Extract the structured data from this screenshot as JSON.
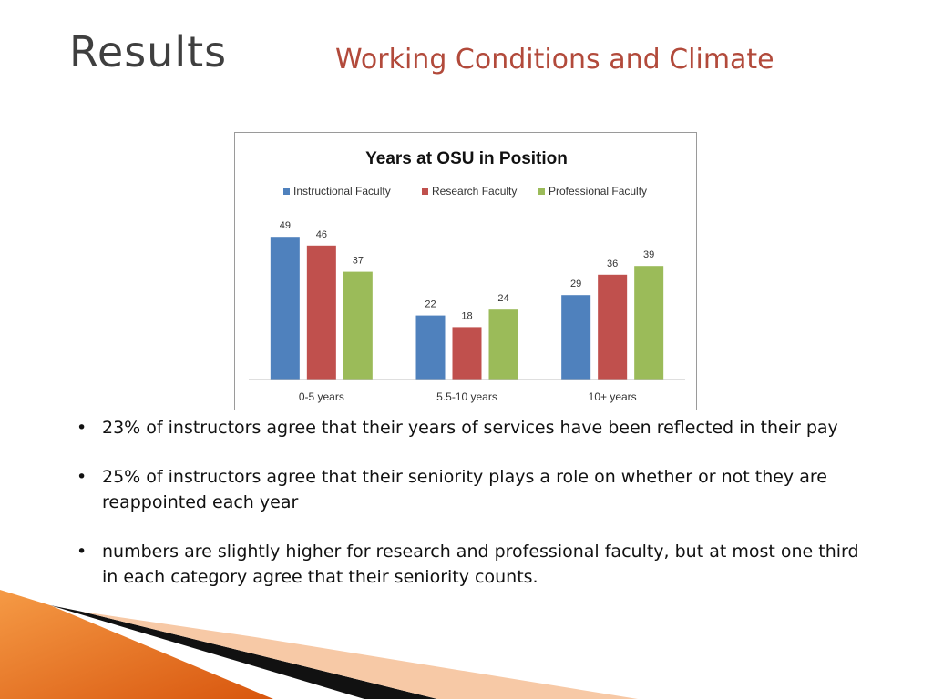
{
  "slide": {
    "title": "Results",
    "subtitle": "Working Conditions and Climate"
  },
  "chart_data": {
    "type": "bar",
    "title": "Years at OSU in Position",
    "categories": [
      "0-5 years",
      "5.5-10 years",
      "10+ years"
    ],
    "series": [
      {
        "name": "Instructional Faculty",
        "color": "#4f81bd",
        "values": [
          49,
          22,
          29
        ]
      },
      {
        "name": "Research Faculty",
        "color": "#c0504d",
        "values": [
          46,
          18,
          36
        ]
      },
      {
        "name": "Professional Faculty",
        "color": "#9bbb59",
        "values": [
          37,
          24,
          39
        ]
      }
    ],
    "ylim": [
      0,
      55
    ],
    "grid": false,
    "legend_position": "top",
    "data_labels": true
  },
  "bullets": [
    {
      "marker": "•",
      "text": "23% of instructors agree that their years of services have been reflected in their pay"
    },
    {
      "marker": "•",
      "text": "25% of instructors agree that their seniority plays a role on whether or not they are reappointed each year"
    },
    {
      "marker": "•",
      "text": "numbers are slightly higher for research and professional faculty, but at most one third in each category agree that their seniority counts."
    }
  ],
  "theme": {
    "accent": "#e8731f",
    "title_color": "#3f3f3f",
    "subtitle_color": "#b24a3b"
  }
}
